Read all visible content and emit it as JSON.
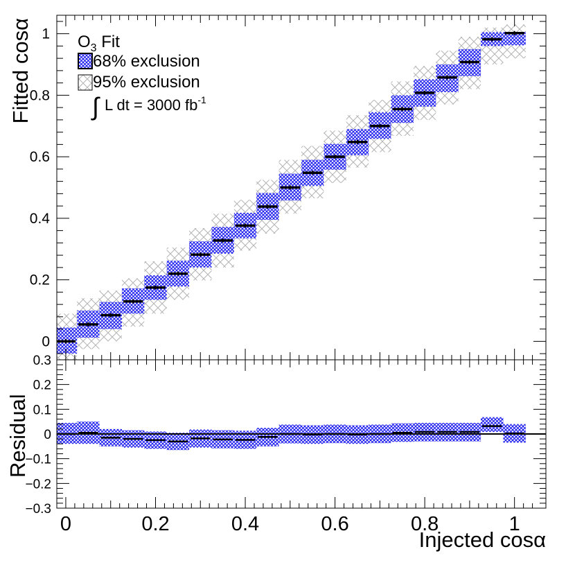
{
  "chart_data": [
    {
      "type": "scatter",
      "panel": "main",
      "ylabel": "Fitted cosα",
      "xlim": [
        -0.02,
        1.07
      ],
      "ylim": [
        -0.06,
        1.06
      ],
      "yticks": [
        0,
        0.2,
        0.4,
        0.6,
        0.8,
        1
      ],
      "ytick_labels": [
        "0",
        "0.2",
        "0.4",
        "0.6",
        "0.8",
        "1"
      ],
      "legend": {
        "position": "top-left",
        "title": "O",
        "title_sub": "3",
        "title_suffix": " Fit",
        "entries": [
          {
            "label": "68% exclusion",
            "style": "blue-crosshatch"
          },
          {
            "label": "95% exclusion",
            "style": "grey-crosshatch"
          }
        ],
        "lumi_prefix": "L dt = 3000 fb",
        "lumi_sup": "-1"
      },
      "x": [
        0,
        0.05,
        0.1,
        0.15,
        0.2,
        0.25,
        0.3,
        0.35,
        0.4,
        0.45,
        0.5,
        0.55,
        0.6,
        0.65,
        0.7,
        0.75,
        0.8,
        0.85,
        0.9,
        0.95,
        1.0
      ],
      "fitted": [
        0.0,
        0.055,
        0.085,
        0.13,
        0.175,
        0.22,
        0.282,
        0.328,
        0.376,
        0.438,
        0.5,
        0.548,
        0.6,
        0.648,
        0.7,
        0.755,
        0.808,
        0.858,
        0.908,
        0.982,
        1.002
      ],
      "band68": [
        [
          -0.04,
          0.045
        ],
        [
          0.012,
          0.1
        ],
        [
          0.04,
          0.128
        ],
        [
          0.09,
          0.172
        ],
        [
          0.135,
          0.215
        ],
        [
          0.178,
          0.262
        ],
        [
          0.24,
          0.325
        ],
        [
          0.285,
          0.372
        ],
        [
          0.335,
          0.418
        ],
        [
          0.395,
          0.482
        ],
        [
          0.458,
          0.545
        ],
        [
          0.505,
          0.59
        ],
        [
          0.558,
          0.642
        ],
        [
          0.605,
          0.69
        ],
        [
          0.658,
          0.745
        ],
        [
          0.71,
          0.8
        ],
        [
          0.763,
          0.852
        ],
        [
          0.81,
          0.9
        ],
        [
          0.862,
          0.95
        ],
        [
          0.96,
          1.005
        ],
        [
          0.962,
          1.005
        ]
      ],
      "band95": [
        [
          -0.08,
          0.09
        ],
        [
          -0.025,
          0.14
        ],
        [
          0.0,
          0.165
        ],
        [
          0.048,
          0.205
        ],
        [
          0.09,
          0.26
        ],
        [
          0.135,
          0.305
        ],
        [
          0.198,
          0.368
        ],
        [
          0.24,
          0.415
        ],
        [
          0.295,
          0.46
        ],
        [
          0.35,
          0.525
        ],
        [
          0.415,
          0.59
        ],
        [
          0.465,
          0.635
        ],
        [
          0.515,
          0.685
        ],
        [
          0.565,
          0.735
        ],
        [
          0.615,
          0.785
        ],
        [
          0.668,
          0.845
        ],
        [
          0.72,
          0.895
        ],
        [
          0.77,
          0.945
        ],
        [
          0.82,
          0.99
        ],
        [
          0.9,
          1.02
        ],
        [
          0.92,
          1.03
        ]
      ]
    },
    {
      "type": "scatter",
      "panel": "residual",
      "xlabel": "Injected cosα",
      "ylabel": "Residual",
      "xlim": [
        -0.02,
        1.07
      ],
      "ylim": [
        -0.3,
        0.3
      ],
      "xticks": [
        0,
        0.2,
        0.4,
        0.6,
        0.8,
        1
      ],
      "xtick_labels": [
        "0",
        "0.2",
        "0.4",
        "0.6",
        "0.8",
        "1"
      ],
      "yticks": [
        -0.3,
        -0.2,
        -0.1,
        0,
        0.1,
        0.2,
        0.3
      ],
      "ytick_labels": [
        "−0.3",
        "−0.2",
        "−0.1",
        "0",
        "0.1",
        "0.2",
        "0.3"
      ],
      "x": [
        0,
        0.05,
        0.1,
        0.15,
        0.2,
        0.25,
        0.3,
        0.35,
        0.4,
        0.45,
        0.5,
        0.55,
        0.6,
        0.65,
        0.7,
        0.75,
        0.8,
        0.85,
        0.9,
        0.95,
        1.0
      ],
      "residual": [
        0.0,
        0.005,
        -0.015,
        -0.02,
        -0.025,
        -0.03,
        -0.018,
        -0.022,
        -0.024,
        -0.012,
        0.0,
        -0.002,
        0.0,
        -0.002,
        0.0,
        0.005,
        0.008,
        0.008,
        0.008,
        0.032,
        0.002
      ],
      "band68": [
        [
          -0.04,
          0.045
        ],
        [
          -0.04,
          0.05
        ],
        [
          -0.05,
          0.02
        ],
        [
          -0.055,
          0.015
        ],
        [
          -0.06,
          0.01
        ],
        [
          -0.065,
          0.005
        ],
        [
          -0.055,
          0.018
        ],
        [
          -0.058,
          0.015
        ],
        [
          -0.06,
          0.013
        ],
        [
          -0.05,
          0.025
        ],
        [
          -0.038,
          0.038
        ],
        [
          -0.04,
          0.035
        ],
        [
          -0.037,
          0.038
        ],
        [
          -0.04,
          0.035
        ],
        [
          -0.037,
          0.038
        ],
        [
          -0.032,
          0.043
        ],
        [
          -0.03,
          0.045
        ],
        [
          -0.03,
          0.045
        ],
        [
          -0.03,
          0.045
        ],
        [
          0.008,
          0.068
        ],
        [
          -0.035,
          0.04
        ]
      ],
      "reference_line": 0
    }
  ]
}
